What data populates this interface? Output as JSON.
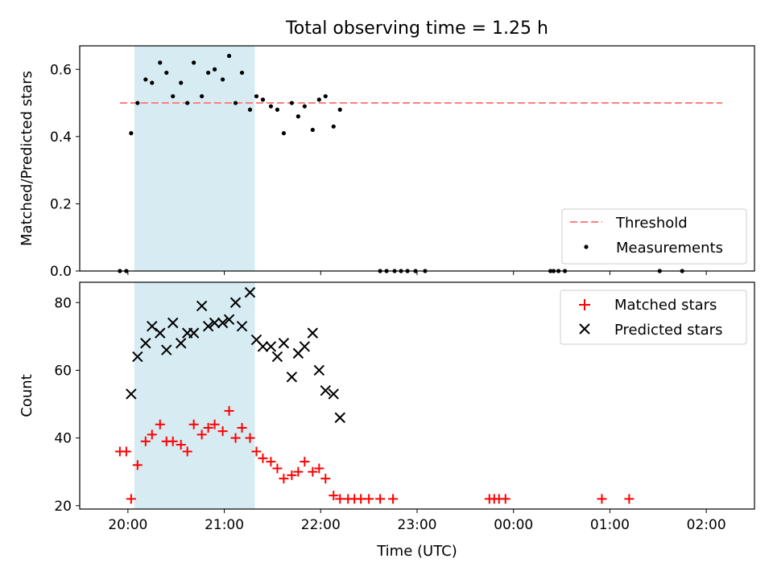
{
  "figure_title": "Total observing time = 1.25 h",
  "xlabel": "Time (UTC)",
  "x_ticks": [
    "20:00",
    "21:00",
    "22:00",
    "23:00",
    "00:00",
    "01:00",
    "02:00"
  ],
  "colors": {
    "threshold": "#ff7f7f",
    "measurement": "#000000",
    "matched": "#ff0000",
    "predicted": "#000000",
    "window_fill": "#add8e6"
  },
  "chart_data": [
    {
      "type": "scatter",
      "ylabel": "Matched/Predicted stars",
      "xlim": [
        "19:30",
        "02:30"
      ],
      "ylim": [
        0,
        0.67
      ],
      "y_ticks": [
        "0.0",
        "0.2",
        "0.4",
        "0.6"
      ],
      "observing_window": {
        "start": "20:04",
        "end": "21:19"
      },
      "threshold": {
        "label": "Threshold",
        "value": 0.5,
        "from": "19:55",
        "to": "02:10",
        "style": "dashed"
      },
      "legend": {
        "position": "lower right",
        "entries": [
          "Threshold",
          "Measurements"
        ]
      },
      "series": [
        {
          "name": "Measurements",
          "marker": "dot",
          "points": [
            [
              "19:55",
              0.0
            ],
            [
              "19:59",
              0.0
            ],
            [
              "20:02",
              0.41
            ],
            [
              "20:06",
              0.5
            ],
            [
              "20:11",
              0.57
            ],
            [
              "20:15",
              0.56
            ],
            [
              "20:20",
              0.62
            ],
            [
              "20:24",
              0.59
            ],
            [
              "20:28",
              0.52
            ],
            [
              "20:33",
              0.56
            ],
            [
              "20:37",
              0.5
            ],
            [
              "20:41",
              0.62
            ],
            [
              "20:46",
              0.52
            ],
            [
              "20:50",
              0.59
            ],
            [
              "20:54",
              0.6
            ],
            [
              "20:59",
              0.57
            ],
            [
              "21:03",
              0.64
            ],
            [
              "21:07",
              0.5
            ],
            [
              "21:11",
              0.59
            ],
            [
              "21:16",
              0.48
            ],
            [
              "21:20",
              0.52
            ],
            [
              "21:24",
              0.51
            ],
            [
              "21:29",
              0.49
            ],
            [
              "21:33",
              0.48
            ],
            [
              "21:37",
              0.41
            ],
            [
              "21:42",
              0.5
            ],
            [
              "21:46",
              0.46
            ],
            [
              "21:50",
              0.49
            ],
            [
              "21:55",
              0.42
            ],
            [
              "21:59",
              0.51
            ],
            [
              "22:03",
              0.52
            ],
            [
              "22:08",
              0.43
            ],
            [
              "22:12",
              0.48
            ],
            [
              "22:37",
              0.0
            ],
            [
              "22:41",
              0.0
            ],
            [
              "22:46",
              0.0
            ],
            [
              "22:50",
              0.0
            ],
            [
              "22:54",
              0.0
            ],
            [
              "22:59",
              0.0
            ],
            [
              "23:05",
              0.0
            ],
            [
              "00:23",
              0.0
            ],
            [
              "00:25",
              0.0
            ],
            [
              "00:28",
              0.0
            ],
            [
              "00:32",
              0.0
            ],
            [
              "01:31",
              0.0
            ],
            [
              "01:45",
              0.0
            ]
          ]
        }
      ]
    },
    {
      "type": "scatter",
      "ylabel": "Count",
      "xlim": [
        "19:30",
        "02:30"
      ],
      "ylim": [
        19,
        86
      ],
      "y_ticks": [
        "20",
        "40",
        "60",
        "80"
      ],
      "observing_window": {
        "start": "20:04",
        "end": "21:19"
      },
      "legend": {
        "position": "upper right",
        "entries": [
          "Matched stars",
          "Predicted stars"
        ]
      },
      "series": [
        {
          "name": "Matched stars",
          "marker": "plus",
          "points": [
            [
              "19:55",
              36
            ],
            [
              "19:59",
              36
            ],
            [
              "20:02",
              22
            ],
            [
              "20:06",
              32
            ],
            [
              "20:11",
              39
            ],
            [
              "20:15",
              41
            ],
            [
              "20:20",
              44
            ],
            [
              "20:24",
              39
            ],
            [
              "20:28",
              39
            ],
            [
              "20:33",
              38
            ],
            [
              "20:37",
              36
            ],
            [
              "20:41",
              44
            ],
            [
              "20:46",
              41
            ],
            [
              "20:50",
              43
            ],
            [
              "20:54",
              44
            ],
            [
              "20:59",
              42
            ],
            [
              "21:03",
              48
            ],
            [
              "21:07",
              40
            ],
            [
              "21:11",
              43
            ],
            [
              "21:16",
              40
            ],
            [
              "21:20",
              36
            ],
            [
              "21:24",
              34
            ],
            [
              "21:29",
              33
            ],
            [
              "21:33",
              31
            ],
            [
              "21:37",
              28
            ],
            [
              "21:42",
              29
            ],
            [
              "21:46",
              30
            ],
            [
              "21:50",
              33
            ],
            [
              "21:55",
              30
            ],
            [
              "21:59",
              31
            ],
            [
              "22:03",
              28
            ],
            [
              "22:08",
              23
            ],
            [
              "22:12",
              22
            ],
            [
              "22:17",
              22
            ],
            [
              "22:21",
              22
            ],
            [
              "22:25",
              22
            ],
            [
              "22:30",
              22
            ],
            [
              "22:37",
              22
            ],
            [
              "22:45",
              22
            ],
            [
              "23:45",
              22
            ],
            [
              "23:48",
              22
            ],
            [
              "23:51",
              22
            ],
            [
              "23:55",
              22
            ],
            [
              "00:55",
              22
            ],
            [
              "01:12",
              22
            ]
          ]
        },
        {
          "name": "Predicted stars",
          "marker": "x",
          "points": [
            [
              "20:02",
              53
            ],
            [
              "20:06",
              64
            ],
            [
              "20:11",
              68
            ],
            [
              "20:15",
              73
            ],
            [
              "20:20",
              71
            ],
            [
              "20:24",
              66
            ],
            [
              "20:28",
              74
            ],
            [
              "20:33",
              68
            ],
            [
              "20:37",
              71
            ],
            [
              "20:41",
              71
            ],
            [
              "20:46",
              79
            ],
            [
              "20:50",
              73
            ],
            [
              "20:54",
              74
            ],
            [
              "20:59",
              74
            ],
            [
              "21:03",
              75
            ],
            [
              "21:07",
              80
            ],
            [
              "21:11",
              73
            ],
            [
              "21:16",
              83
            ],
            [
              "21:20",
              69
            ],
            [
              "21:24",
              67
            ],
            [
              "21:29",
              67
            ],
            [
              "21:33",
              64
            ],
            [
              "21:37",
              68
            ],
            [
              "21:42",
              58
            ],
            [
              "21:46",
              65
            ],
            [
              "21:50",
              67
            ],
            [
              "21:55",
              71
            ],
            [
              "21:59",
              60
            ],
            [
              "22:03",
              54
            ],
            [
              "22:08",
              53
            ],
            [
              "22:12",
              46
            ]
          ]
        }
      ]
    }
  ]
}
